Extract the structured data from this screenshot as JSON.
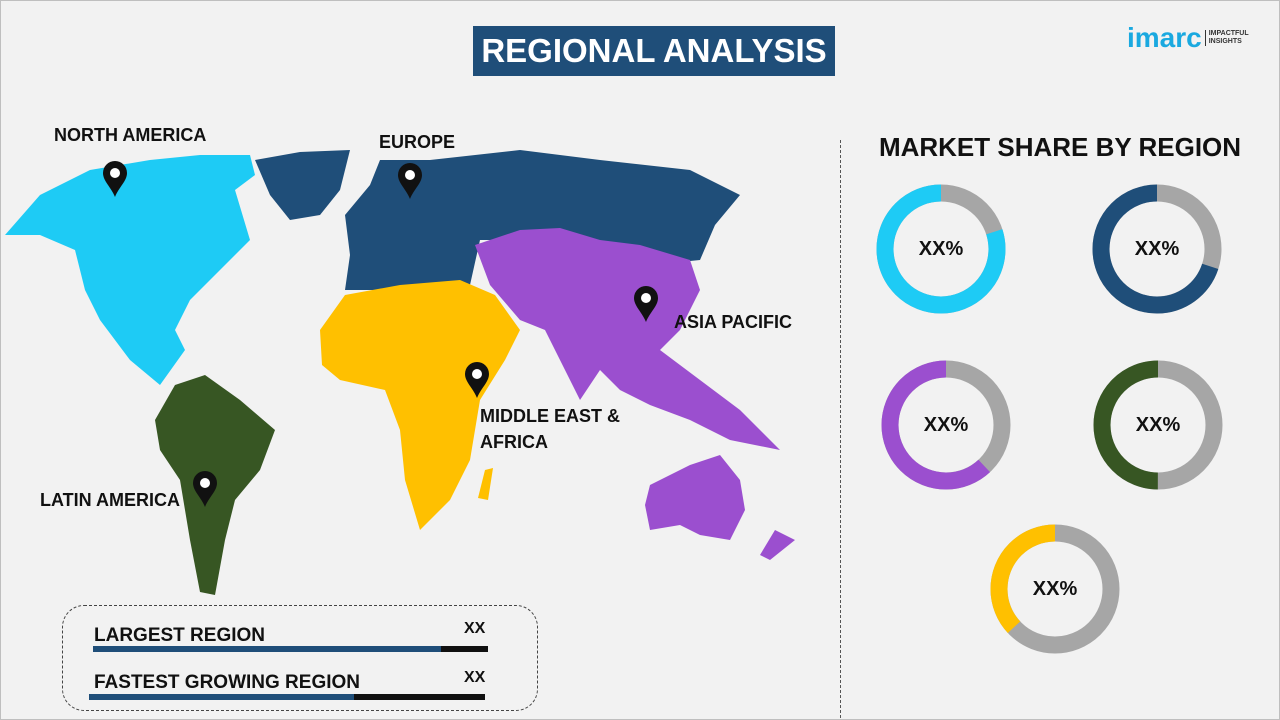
{
  "header": {
    "title": "REGIONAL ANALYSIS",
    "logo": {
      "wordmark": "imarc",
      "tagline_1": "IMPACTFUL",
      "tagline_2": "INSIGHTS"
    }
  },
  "map": {
    "regions": [
      {
        "label": "NORTH AMERICA",
        "color": "#1ecbf5"
      },
      {
        "label": "EUROPE",
        "color": "#1f4e79"
      },
      {
        "label": "ASIA PACIFIC",
        "color": "#9b4fcf"
      },
      {
        "label_1": "MIDDLE EAST &",
        "label_2": "AFRICA",
        "color": "#ffc000"
      },
      {
        "label": "LATIN AMERICA",
        "color": "#375623"
      }
    ],
    "pin_icon": "map-pin-icon"
  },
  "share": {
    "title": "MARKET SHARE BY REGION",
    "track_color": "#a6a6a6",
    "donuts": [
      {
        "value_label": "XX%",
        "fill_fraction": 0.8,
        "color": "#1ecbf5"
      },
      {
        "value_label": "XX%",
        "fill_fraction": 0.7,
        "color": "#1f4e79"
      },
      {
        "value_label": "XX%",
        "fill_fraction": 0.62,
        "color": "#9b4fcf"
      },
      {
        "value_label": "XX%",
        "fill_fraction": 0.5,
        "color": "#375623"
      },
      {
        "value_label": "XX%",
        "fill_fraction": 0.37,
        "color": "#ffc000"
      }
    ]
  },
  "summary": {
    "largest": {
      "label": "LARGEST REGION",
      "value": "XX",
      "fill_fraction": 0.88
    },
    "fastest": {
      "label": "FASTEST GROWING REGION",
      "value": "XX",
      "fill_fraction": 0.67
    }
  }
}
